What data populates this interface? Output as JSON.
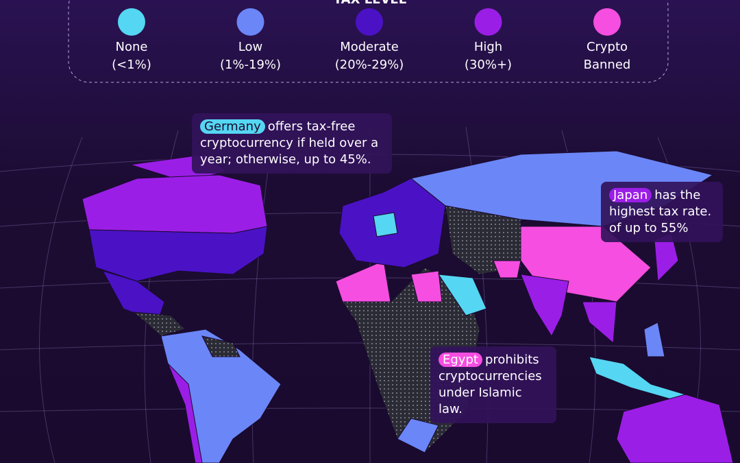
{
  "legend": {
    "title": "TAX LEVEL",
    "items": [
      {
        "label": "None",
        "range": "(<1%)",
        "color": "#55d6f2"
      },
      {
        "label": "Low",
        "range": "(1%-19%)",
        "color": "#6b86f7"
      },
      {
        "label": "Moderate",
        "range": "(20%-29%)",
        "color": "#4a12c4"
      },
      {
        "label": "High",
        "range": "(30%+)",
        "color": "#9b1ee6"
      },
      {
        "label": "Crypto",
        "range": "Banned",
        "color": "#f54ee0"
      }
    ]
  },
  "annotations": [
    {
      "highlight": "Germany",
      "text": "offers tax-free cryptocurrency if held over a year; otherwise, up to 45%.",
      "color": "#55d6f2"
    },
    {
      "highlight": "Japan",
      "text": "has the highest tax rate. of up to 55%",
      "color": "#9b1ee6"
    },
    {
      "highlight": "Egypt",
      "text": "prohibits cryptocurrencies under Islamic law.",
      "color": "#f54ee0"
    }
  ]
}
